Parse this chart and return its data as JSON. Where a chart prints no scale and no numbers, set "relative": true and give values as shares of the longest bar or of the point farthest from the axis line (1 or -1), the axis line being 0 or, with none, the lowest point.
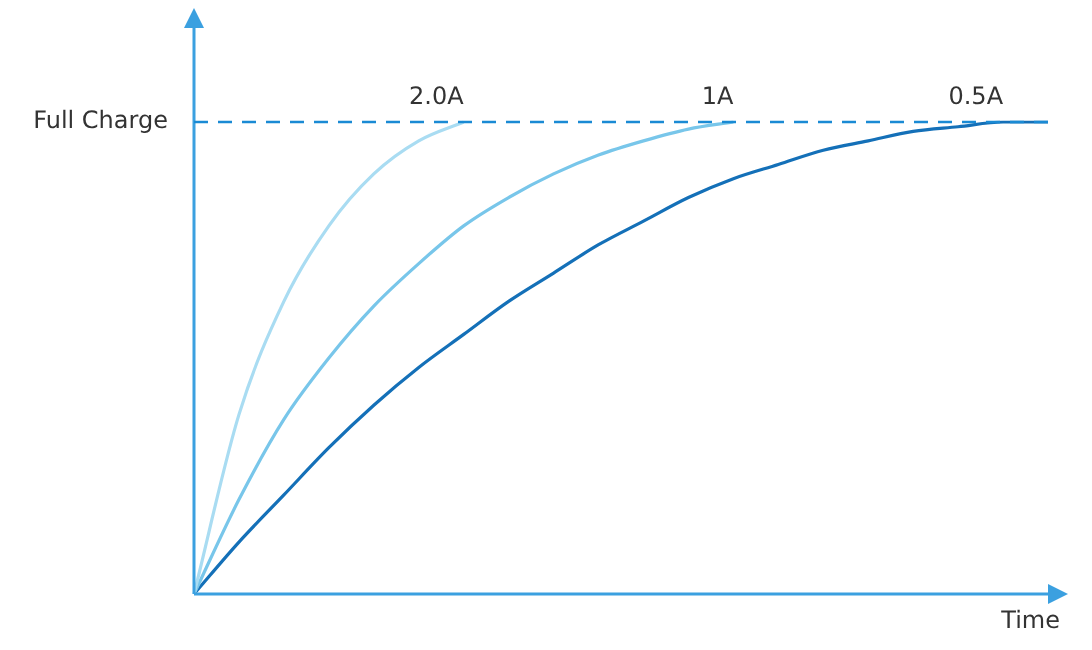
{
  "chart_data": {
    "type": "line",
    "relative": true,
    "xlabel": "Time",
    "categories": [
      null,
      null,
      null,
      null,
      null,
      null,
      null,
      null,
      null,
      null,
      null,
      null,
      null,
      null,
      null,
      null,
      null,
      null,
      null,
      null
    ],
    "series": [
      {
        "name": "2.0A",
        "color": "#a9dcf2",
        "values": [
          0,
          0.38,
          0.62,
          0.78,
          0.89,
          0.96,
          1,
          null,
          null,
          null,
          null,
          null,
          null,
          null,
          null,
          null,
          null,
          null,
          null,
          null
        ]
      },
      {
        "name": "1A",
        "color": "#78c6ea",
        "values": [
          0,
          0.2,
          0.37,
          0.5,
          0.61,
          0.7,
          0.78,
          0.84,
          0.89,
          0.93,
          0.96,
          0.985,
          1,
          null,
          null,
          null,
          null,
          null,
          null,
          null
        ]
      },
      {
        "name": "0.5A",
        "color": "#1470b8",
        "values": [
          0,
          0.11,
          0.21,
          0.31,
          0.4,
          0.48,
          0.55,
          0.62,
          0.68,
          0.74,
          0.79,
          0.84,
          0.88,
          0.91,
          0.94,
          0.96,
          0.98,
          0.99,
          1,
          1
        ]
      }
    ],
    "ref_lines": [
      {
        "axis": "y",
        "value": 1,
        "label": "Full Charge",
        "color": "#1a8ad4",
        "line_style": "dashed"
      }
    ],
    "marker": "none"
  }
}
